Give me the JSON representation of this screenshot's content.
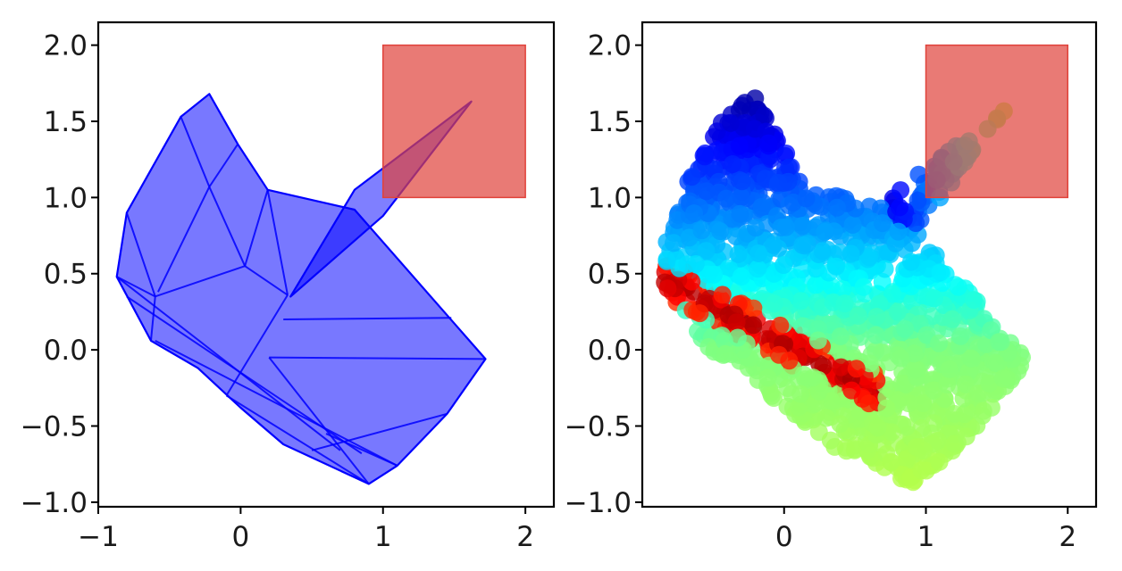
{
  "chart_data": [
    {
      "type": "polygon",
      "xlim": [
        -1.0,
        2.2
      ],
      "ylim": [
        -1.03,
        2.15
      ],
      "x_ticks": [
        {
          "value": -1,
          "label": "−1"
        },
        {
          "value": 0,
          "label": "0"
        },
        {
          "value": 1,
          "label": "1"
        },
        {
          "value": 2,
          "label": "2"
        }
      ],
      "y_ticks": [
        {
          "value": 2.0,
          "label": "2.0"
        },
        {
          "value": 1.5,
          "label": "1.5"
        },
        {
          "value": 1.0,
          "label": "1.0"
        },
        {
          "value": 0.5,
          "label": "0.5"
        },
        {
          "value": 0.0,
          "label": "0.0"
        },
        {
          "value": -0.5,
          "label": "−0.5"
        },
        {
          "value": -1.0,
          "label": "−1.0"
        }
      ],
      "fill_color": "#0000ff",
      "outline": [
        [
          -0.87,
          0.48
        ],
        [
          -0.8,
          0.9
        ],
        [
          -0.42,
          1.53
        ],
        [
          -0.22,
          1.68
        ],
        [
          -0.02,
          1.35
        ],
        [
          0.19,
          1.05
        ],
        [
          0.8,
          0.92
        ],
        [
          1.72,
          -0.06
        ],
        [
          1.45,
          -0.42
        ],
        [
          1.1,
          -0.76
        ],
        [
          0.9,
          -0.88
        ],
        [
          0.3,
          -0.62
        ],
        [
          0.0,
          -0.38
        ],
        [
          -0.3,
          -0.12
        ],
        [
          -0.63,
          0.06
        ]
      ],
      "wedge": [
        [
          0.35,
          0.35
        ],
        [
          0.8,
          1.05
        ],
        [
          1.62,
          1.63
        ],
        [
          1.0,
          0.88
        ]
      ],
      "edges": [
        [
          [
            -0.42,
            1.53
          ],
          [
            -0.22,
            1.07
          ]
        ],
        [
          [
            -0.22,
            1.07
          ],
          [
            -0.02,
            1.35
          ]
        ],
        [
          [
            -0.22,
            1.07
          ],
          [
            0.03,
            0.55
          ]
        ],
        [
          [
            0.03,
            0.55
          ],
          [
            -0.6,
            0.35
          ]
        ],
        [
          [
            -0.6,
            0.35
          ],
          [
            -0.87,
            0.48
          ]
        ],
        [
          [
            -0.6,
            0.35
          ],
          [
            -0.63,
            0.06
          ]
        ],
        [
          [
            -0.8,
            0.9
          ],
          [
            -0.6,
            0.35
          ]
        ],
        [
          [
            -0.22,
            1.07
          ],
          [
            -0.58,
            0.38
          ]
        ],
        [
          [
            0.19,
            1.05
          ],
          [
            0.03,
            0.55
          ]
        ],
        [
          [
            0.19,
            1.05
          ],
          [
            0.33,
            0.36
          ]
        ],
        [
          [
            0.03,
            0.55
          ],
          [
            0.33,
            0.36
          ]
        ],
        [
          [
            0.33,
            0.36
          ],
          [
            -0.1,
            -0.3
          ]
        ],
        [
          [
            0.3,
            0.2
          ],
          [
            1.48,
            0.21
          ]
        ],
        [
          [
            -0.87,
            0.48
          ],
          [
            0.7,
            -0.66
          ]
        ],
        [
          [
            -0.8,
            0.35
          ],
          [
            0.85,
            -0.68
          ]
        ],
        [
          [
            -0.6,
            0.06
          ],
          [
            1.1,
            -0.76
          ]
        ],
        [
          [
            -0.1,
            -0.3
          ],
          [
            0.9,
            -0.88
          ]
        ],
        [
          [
            0.2,
            -0.05
          ],
          [
            0.9,
            -0.88
          ]
        ],
        [
          [
            0.2,
            -0.05
          ],
          [
            1.72,
            -0.06
          ]
        ],
        [
          [
            0.5,
            -0.66
          ],
          [
            1.45,
            -0.42
          ]
        ],
        [
          [
            0.6,
            -0.55
          ],
          [
            1.1,
            -0.76
          ]
        ]
      ],
      "rect": {
        "x": 1.0,
        "y": 1.0,
        "width": 1.0,
        "height": 1.0,
        "color": "#e0423a"
      }
    },
    {
      "type": "scatter",
      "xlim": [
        -1.0,
        2.2
      ],
      "ylim": [
        -1.03,
        2.15
      ],
      "x_ticks": [
        {
          "value": 0,
          "label": "0"
        },
        {
          "value": 1,
          "label": "1"
        },
        {
          "value": 2,
          "label": "2"
        }
      ],
      "y_ticks": [
        {
          "value": 2.0,
          "label": "2.0"
        },
        {
          "value": 1.5,
          "label": "1.5"
        },
        {
          "value": 1.0,
          "label": "1.0"
        },
        {
          "value": 0.5,
          "label": "0.5"
        },
        {
          "value": 0.0,
          "label": "0.0"
        },
        {
          "value": -0.5,
          "label": "−0.5"
        },
        {
          "value": -1.0,
          "label": "−1.0"
        }
      ],
      "colormap": "jet",
      "point_count": 1500,
      "rect": {
        "x": 1.0,
        "y": 1.0,
        "width": 1.0,
        "height": 1.0,
        "color": "#e0423a"
      }
    }
  ]
}
